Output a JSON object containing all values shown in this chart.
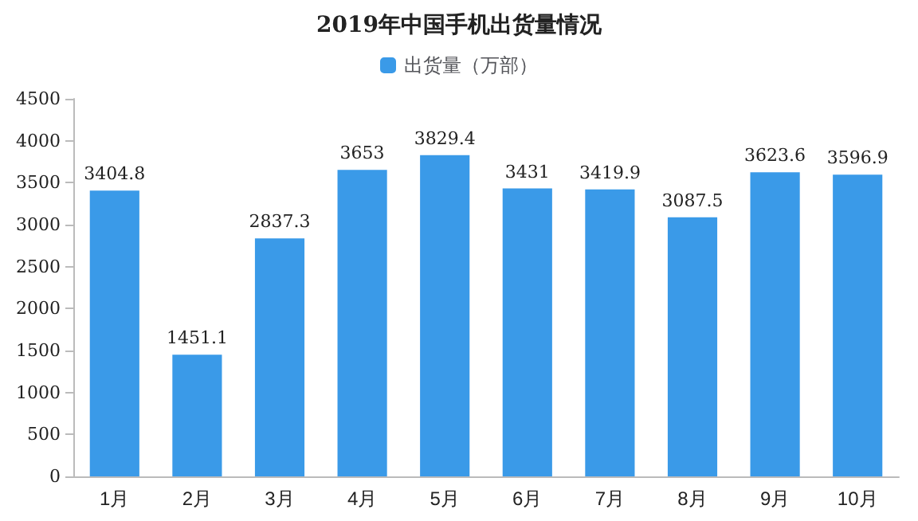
{
  "chart_data": {
    "type": "bar",
    "title": "2019年中国手机出货量情况",
    "categories": [
      "1月",
      "2月",
      "3月",
      "4月",
      "5月",
      "6月",
      "7月",
      "8月",
      "9月",
      "10月"
    ],
    "series": [
      {
        "name": "出货量（万部）",
        "color": "#3a9ae8",
        "values": [
          3404.8,
          1451.1,
          2837.3,
          3653,
          3829.4,
          3431,
          3419.9,
          3087.5,
          3623.6,
          3596.9
        ]
      }
    ],
    "ylim": [
      0,
      4500
    ],
    "yticks": [
      0,
      500,
      1000,
      1500,
      2000,
      2500,
      3000,
      3500,
      4000,
      4500
    ],
    "data_labels": true,
    "legend": "top",
    "grid": false
  }
}
